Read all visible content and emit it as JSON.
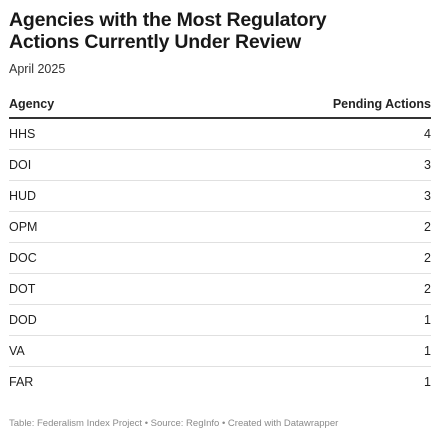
{
  "title": "Agencies with the Most Regulatory Actions Currently Under Review",
  "subtitle": "April 2025",
  "table": {
    "headers": [
      "Agency",
      "Pending Actions"
    ]
  },
  "chart_data": {
    "type": "table",
    "title": "Agencies with the Most Regulatory Actions Currently Under Review",
    "subtitle": "April 2025",
    "columns": [
      "Agency",
      "Pending Actions"
    ],
    "rows": [
      {
        "agency": "HHS",
        "pending": 4
      },
      {
        "agency": "DOI",
        "pending": 3
      },
      {
        "agency": "HUD",
        "pending": 3
      },
      {
        "agency": "OPM",
        "pending": 2
      },
      {
        "agency": "DOC",
        "pending": 2
      },
      {
        "agency": "DOT",
        "pending": 2
      },
      {
        "agency": "DOD",
        "pending": 1
      },
      {
        "agency": "VA",
        "pending": 1
      },
      {
        "agency": "FAR",
        "pending": 1
      }
    ]
  },
  "footer": "Table: Federalism Index Project • Source: RegInfo • Created with Datawrapper"
}
